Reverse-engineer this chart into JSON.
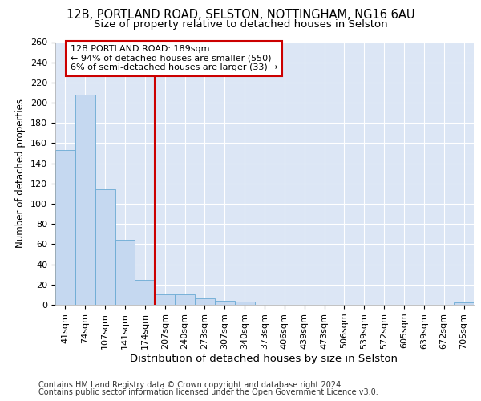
{
  "title1": "12B, PORTLAND ROAD, SELSTON, NOTTINGHAM, NG16 6AU",
  "title2": "Size of property relative to detached houses in Selston",
  "xlabel": "Distribution of detached houses by size in Selston",
  "ylabel": "Number of detached properties",
  "categories": [
    "41sqm",
    "74sqm",
    "107sqm",
    "141sqm",
    "174sqm",
    "207sqm",
    "240sqm",
    "273sqm",
    "307sqm",
    "340sqm",
    "373sqm",
    "406sqm",
    "439sqm",
    "473sqm",
    "506sqm",
    "539sqm",
    "572sqm",
    "605sqm",
    "639sqm",
    "672sqm",
    "705sqm"
  ],
  "values": [
    153,
    208,
    114,
    64,
    25,
    10,
    10,
    6,
    4,
    3,
    0,
    0,
    0,
    0,
    0,
    0,
    0,
    0,
    0,
    0,
    2
  ],
  "bar_color": "#c5d8f0",
  "bar_edge_color": "#6aaad4",
  "vline_x": 4.5,
  "vline_color": "#cc0000",
  "annotation_text": "12B PORTLAND ROAD: 189sqm\n← 94% of detached houses are smaller (550)\n6% of semi-detached houses are larger (33) →",
  "annotation_box_edgecolor": "#cc0000",
  "ylim": [
    0,
    260
  ],
  "yticks": [
    0,
    20,
    40,
    60,
    80,
    100,
    120,
    140,
    160,
    180,
    200,
    220,
    240,
    260
  ],
  "footer1": "Contains HM Land Registry data © Crown copyright and database right 2024.",
  "footer2": "Contains public sector information licensed under the Open Government Licence v3.0.",
  "background_color": "#dce6f5",
  "grid_color": "#ffffff",
  "title1_fontsize": 10.5,
  "title2_fontsize": 9.5,
  "tick_fontsize": 8.0,
  "xlabel_fontsize": 9.5,
  "ylabel_fontsize": 8.5,
  "footer_fontsize": 7.0,
  "annotation_fontsize": 8.0
}
